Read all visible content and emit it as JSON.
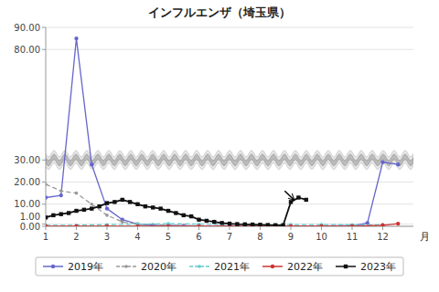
{
  "chart_data": {
    "type": "line",
    "title": "インフルエンザ（埼玉県）",
    "xlabel": "月",
    "xlim": [
      1,
      13
    ],
    "xticks": [
      1,
      2,
      3,
      4,
      5,
      6,
      7,
      8,
      9,
      10,
      11,
      12
    ],
    "ylim": [
      0.0,
      90.0
    ],
    "yticks": [
      {
        "value": 0,
        "label": "0.00"
      },
      {
        "value": 1,
        "label": "1.00"
      },
      {
        "value": 10,
        "label": "10.00"
      },
      {
        "value": 20,
        "label": "20.00"
      },
      {
        "value": 30,
        "label": "30.00"
      },
      {
        "value": 80,
        "label": "80.00"
      },
      {
        "value": 90,
        "label": "90.00"
      }
    ],
    "grid": true,
    "legend": "bottom",
    "alert": {
      "value": 30.0,
      "color": "#999999"
    },
    "arrows": [
      {
        "x_tail": 8.8,
        "y_tail": 16.0,
        "x_tip": 9.1,
        "y_tip": 12.0
      }
    ],
    "series": [
      {
        "name": "2019年",
        "color": "#6666cc",
        "marker": "circle",
        "line_style": "solid",
        "x": [
          1,
          1.5,
          2,
          2.5,
          3,
          3.5,
          4,
          4.5,
          5,
          5.5,
          6,
          7,
          8,
          9,
          10,
          11,
          11.5,
          12,
          12.5
        ],
        "values": [
          13,
          14,
          85,
          28,
          8,
          3,
          1,
          0.5,
          0.3,
          0.2,
          0.1,
          0.1,
          0.1,
          0.1,
          0.1,
          0.3,
          1.5,
          29,
          28
        ]
      },
      {
        "name": "2020年",
        "color": "#999999",
        "marker": "point",
        "line_style": "dashed",
        "x": [
          1,
          1.5,
          2,
          2.5,
          3,
          3.5,
          4,
          5,
          6,
          7,
          8,
          9,
          10,
          11,
          12
        ],
        "values": [
          19,
          16,
          15,
          10,
          5,
          2,
          1,
          0.5,
          0.2,
          0.1,
          0.1,
          0.1,
          0.1,
          0.1,
          0.1
        ]
      },
      {
        "name": "2021年",
        "color": "#66cccc",
        "marker": "point",
        "line_style": "dashed",
        "x": [
          1,
          2,
          3,
          4,
          5,
          6,
          7,
          8,
          9,
          10,
          11,
          12
        ],
        "values": [
          0.5,
          0.5,
          0.8,
          1.0,
          1.2,
          1.0,
          0.9,
          0.9,
          0.8,
          0.8,
          0.7,
          0.7
        ]
      },
      {
        "name": "2022年",
        "color": "#cc3333",
        "marker": "circle",
        "line_style": "solid",
        "x": [
          1,
          2,
          3,
          4,
          5,
          6,
          7,
          8,
          9,
          10,
          11,
          12,
          12.5
        ],
        "values": [
          0.05,
          0.05,
          0.05,
          0.05,
          0.05,
          0.05,
          0.05,
          0.05,
          0.05,
          0.05,
          0.05,
          0.5,
          1.2
        ]
      },
      {
        "name": "2023年",
        "color": "#111111",
        "marker": "square",
        "line_style": "solid",
        "x": [
          1,
          1.25,
          1.5,
          1.75,
          2,
          2.25,
          2.5,
          2.75,
          3,
          3.25,
          3.5,
          3.75,
          4,
          4.25,
          4.5,
          4.75,
          5,
          5.25,
          5.5,
          5.75,
          6,
          6.25,
          6.5,
          6.75,
          7,
          7.25,
          7.5,
          7.75,
          8,
          8.25,
          8.5,
          8.75,
          9,
          9.25,
          9.5
        ],
        "values": [
          4,
          5,
          5.5,
          6,
          7,
          7.5,
          8,
          9,
          10.5,
          11,
          12,
          11,
          10,
          9,
          8.5,
          8,
          7,
          6,
          5,
          4.5,
          3,
          2.5,
          2,
          1.5,
          1.2,
          1.0,
          0.9,
          0.8,
          0.7,
          0.6,
          0.5,
          0.5,
          11,
          13,
          12
        ]
      }
    ]
  }
}
